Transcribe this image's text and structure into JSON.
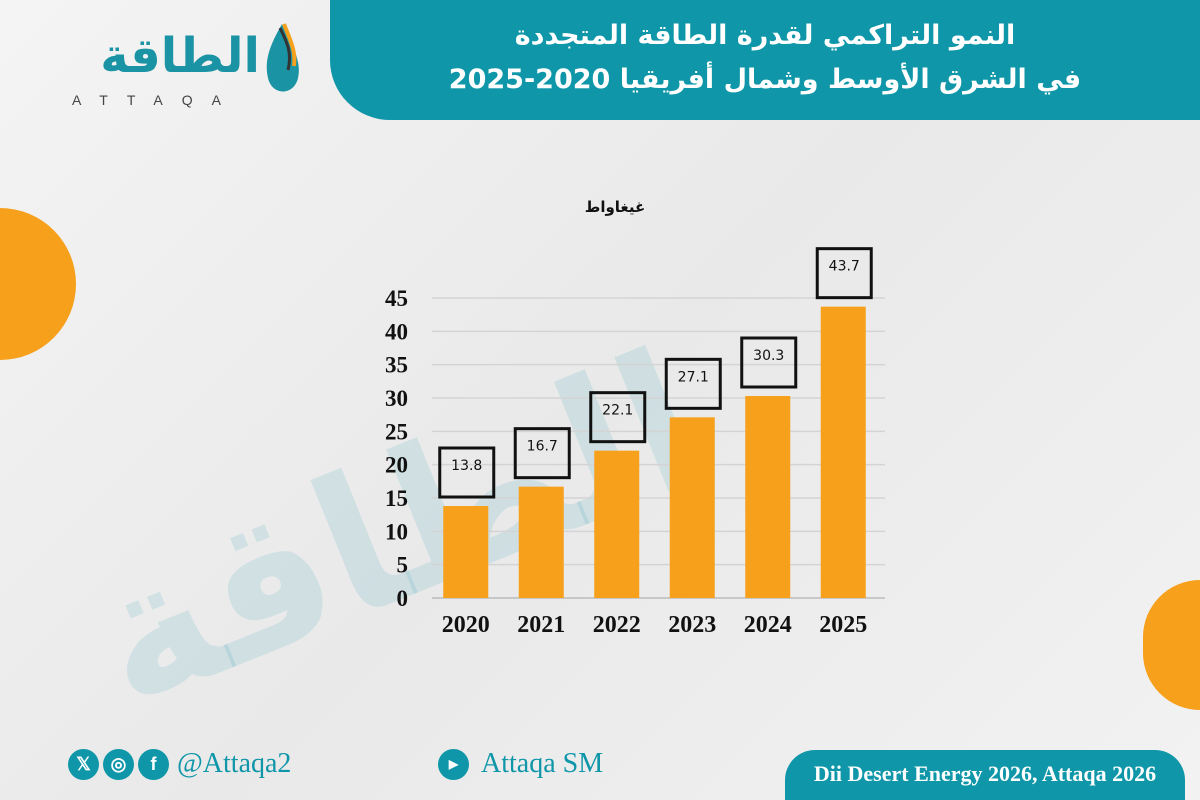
{
  "header": {
    "title_line1": "النمو التراكمي لقدرة الطاقة المتجددة",
    "title_line2": "في الشرق الأوسط وشمال أفريقيا 2020-2025"
  },
  "logo": {
    "arabic": "الطاقة",
    "latin": "ATTAQA"
  },
  "footer": {
    "social_handle": "@Attaqa2",
    "youtube_handle": "Attaqa SM",
    "source": "Dii Desert Energy 2026, Attaqa 2026",
    "icons": [
      "x-icon",
      "instagram-icon",
      "facebook-icon",
      "youtube-icon"
    ]
  },
  "colors": {
    "accent": "#0f97a9",
    "bar": "#f6a01b"
  },
  "chart_data": {
    "type": "bar",
    "unit_label": "غيغاواط",
    "categories": [
      "2020",
      "2021",
      "2022",
      "2023",
      "2024",
      "2025"
    ],
    "values": [
      13.8,
      16.7,
      22.1,
      27.1,
      30.3,
      43.7
    ],
    "data_labels": [
      "13.8",
      "16.7",
      "22.1",
      "27.1",
      "30.3",
      "43.7"
    ],
    "yticks": [
      "0",
      "5",
      "10",
      "15",
      "20",
      "25",
      "30",
      "35",
      "40",
      "45"
    ],
    "ylim": [
      0,
      45
    ],
    "grid": true
  }
}
